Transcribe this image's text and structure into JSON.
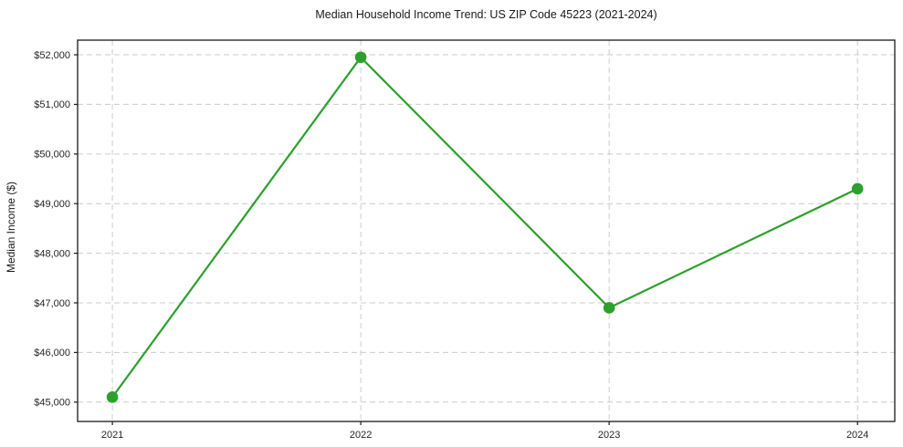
{
  "figure": {
    "title": "Median Household Income Trend: US ZIP Code 45223 (2021-2024)",
    "ylabel": "Median Income ($)"
  },
  "chart_data": {
    "type": "line",
    "title": "Median Household Income Trend: US ZIP Code 45223 (2021-2024)",
    "xlabel": "",
    "ylabel": "Median Income ($)",
    "x": [
      2021,
      2022,
      2023,
      2024
    ],
    "xtick_labels": [
      "2021",
      "2022",
      "2023",
      "2024"
    ],
    "series": [
      {
        "name": "Median Household Income",
        "values": [
          45100,
          51950,
          46900,
          49300
        ],
        "color": "#2ca02c",
        "marker": "circle",
        "marker_radius": 6.3,
        "line_width": 2.2
      }
    ],
    "yticks": [
      45000,
      46000,
      47000,
      48000,
      49000,
      50000,
      51000,
      52000
    ],
    "ytick_labels": [
      "$45,000",
      "$46,000",
      "$47,000",
      "$48,000",
      "$49,000",
      "$50,000",
      "$51,000",
      "$52,000"
    ],
    "ylim": [
      44610,
      52295
    ],
    "xlim": [
      2020.86,
      2024.15
    ],
    "grid": true,
    "grid_style": "dashed",
    "grid_color": "#cccccc",
    "axis_color": "#1a1a1a",
    "background": "#ffffff",
    "legend": null
  }
}
